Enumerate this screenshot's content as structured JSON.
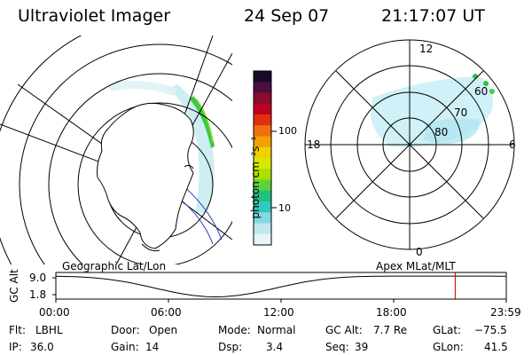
{
  "header": {
    "title": "Ultraviolet Imager",
    "date": "24 Sep 07",
    "time": "21:17:07 UT"
  },
  "left_map": {
    "label": "Geographic Lat/Lon"
  },
  "right_map": {
    "label": "Apex MLat/MLT",
    "mlt_labels": {
      "top": "12",
      "left": "18",
      "right": "6",
      "bottom": "0"
    },
    "lat_labels": [
      "60",
      "70",
      "80"
    ]
  },
  "colorbar": {
    "unit_label": "photon cm⁻²s⁻¹",
    "tick_labels": [
      "100",
      "10"
    ],
    "colors": [
      "#1a0a2a",
      "#4a1040",
      "#8a0a30",
      "#c00020",
      "#e03010",
      "#f07010",
      "#f0a000",
      "#f0d000",
      "#d8e800",
      "#a8e000",
      "#60d040",
      "#20c080",
      "#30c8c0",
      "#80d8e0",
      "#c0e8f0",
      "#e8f4f8"
    ]
  },
  "altitude_plot": {
    "ylabel": "GC Alt",
    "ytick_top": "9.0",
    "ytick_bottom": "1.8",
    "xticks": [
      "00:00",
      "06:00",
      "12:00",
      "18:00",
      "23:59"
    ],
    "current_time_marker_hours": 21.28,
    "marker_color": "#cc0000"
  },
  "footer": {
    "flt_label": "Flt:",
    "flt_value": "LBHL",
    "ip_label": "IP:",
    "ip_value": "36.0",
    "door_label": "Door:",
    "door_value": "Open",
    "gain_label": "Gain:",
    "gain_value": "14",
    "mode_label": "Mode:",
    "mode_value": "Normal",
    "dsp_label": "Dsp:",
    "dsp_value": "3.4",
    "gcalt_label": "GC Alt:",
    "gcalt_value": "7.7 Re",
    "seq_label": "Seq:",
    "seq_value": "39",
    "glat_label": "GLat:",
    "glat_value": "−75.5",
    "glon_label": "GLon:",
    "glon_value": "41.5"
  }
}
